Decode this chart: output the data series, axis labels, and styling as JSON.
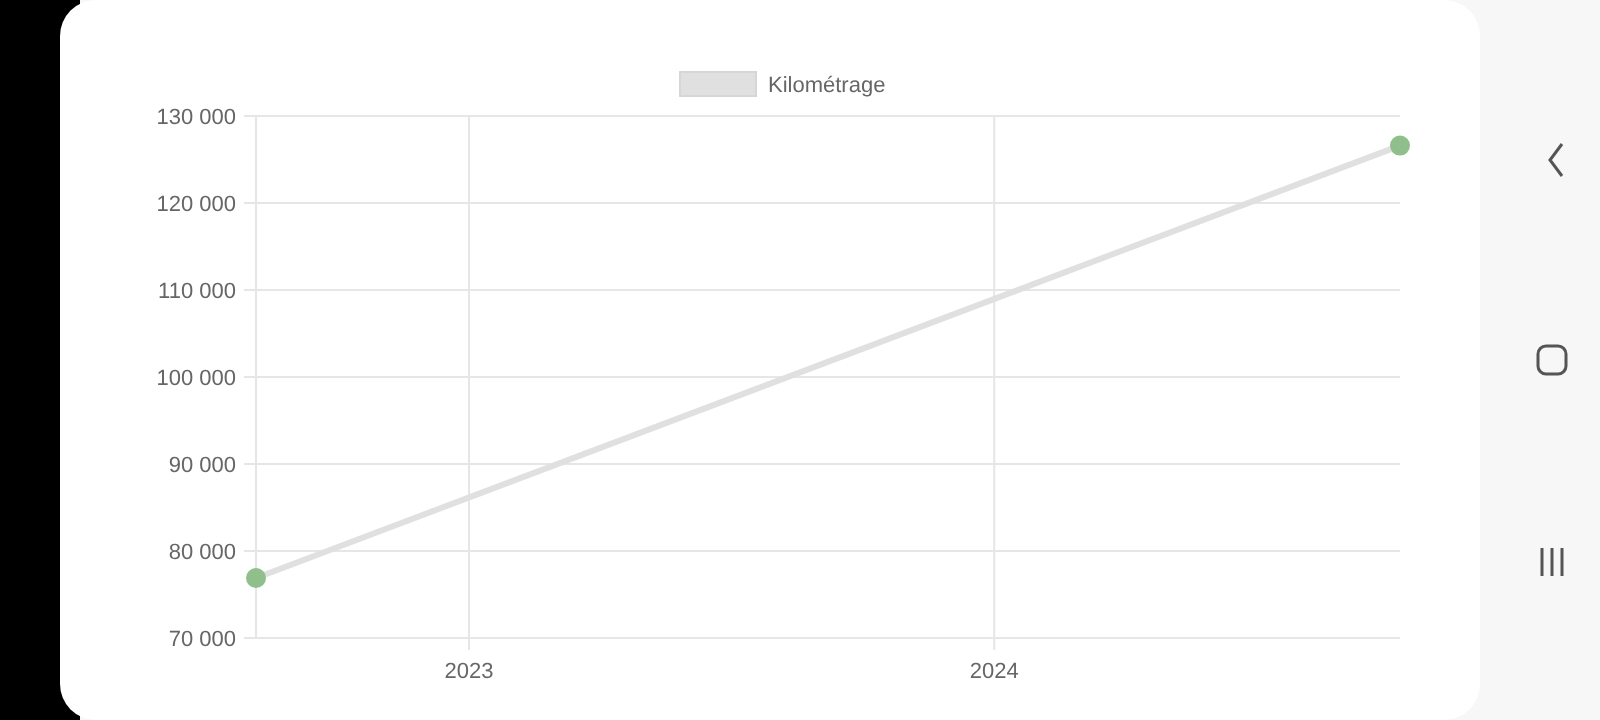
{
  "chart_data": {
    "type": "line",
    "x": [
      "2022-08-06",
      "2024-10-09"
    ],
    "series": [
      {
        "name": "Kilométrage",
        "color": "#e0e0e0",
        "values": [
          76900,
          126600
        ],
        "colors": [
          "#8fbf8a",
          "#8fbf8a"
        ]
      }
    ],
    "marker": "circle",
    "xlim": [
      "2022-08-06",
      "2024-10-09"
    ],
    "xticks": [
      "2023",
      "2024"
    ],
    "ylim": [
      70000,
      130000
    ],
    "yticks": [
      {
        "value": 70000,
        "label": "70 000"
      },
      {
        "value": 80000,
        "label": "80 000"
      },
      {
        "value": 90000,
        "label": "90 000"
      },
      {
        "value": 100000,
        "label": "100 000"
      },
      {
        "value": 110000,
        "label": "110 000"
      },
      {
        "value": 120000,
        "label": "120 000"
      },
      {
        "value": 130000,
        "label": "130 000"
      }
    ],
    "grid": true,
    "legend": "top"
  }
}
